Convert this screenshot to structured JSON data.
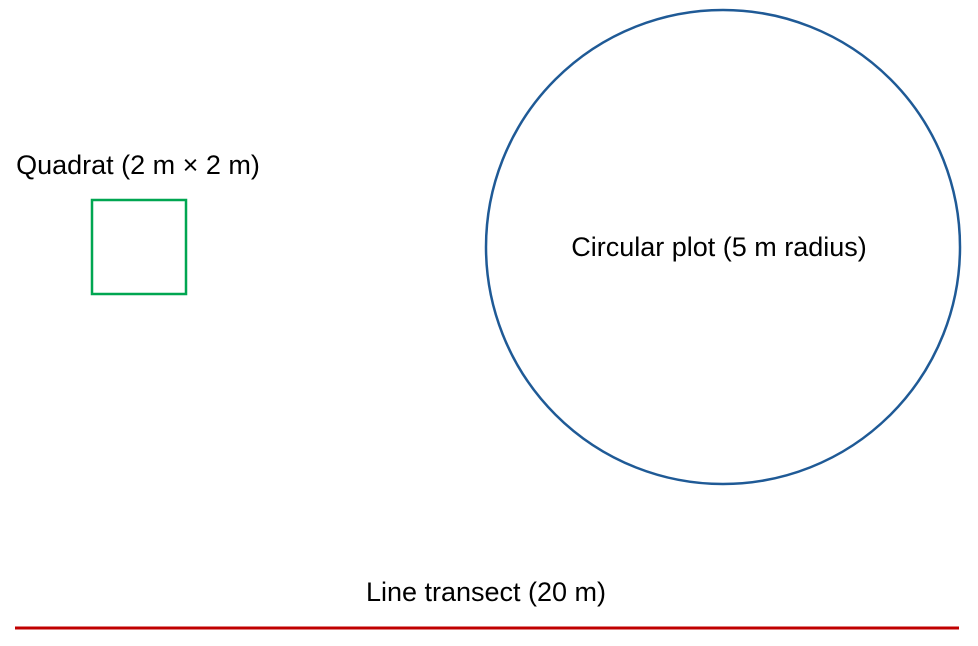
{
  "diagram": {
    "quadrat": {
      "label": "Quadrat (2 m × 2 m)",
      "color": "#00a651"
    },
    "circular_plot": {
      "label": "Circular plot (5 m radius)",
      "color": "#1f5a96"
    },
    "line_transect": {
      "label": "Line transect (20 m)",
      "color": "#c00000"
    }
  }
}
